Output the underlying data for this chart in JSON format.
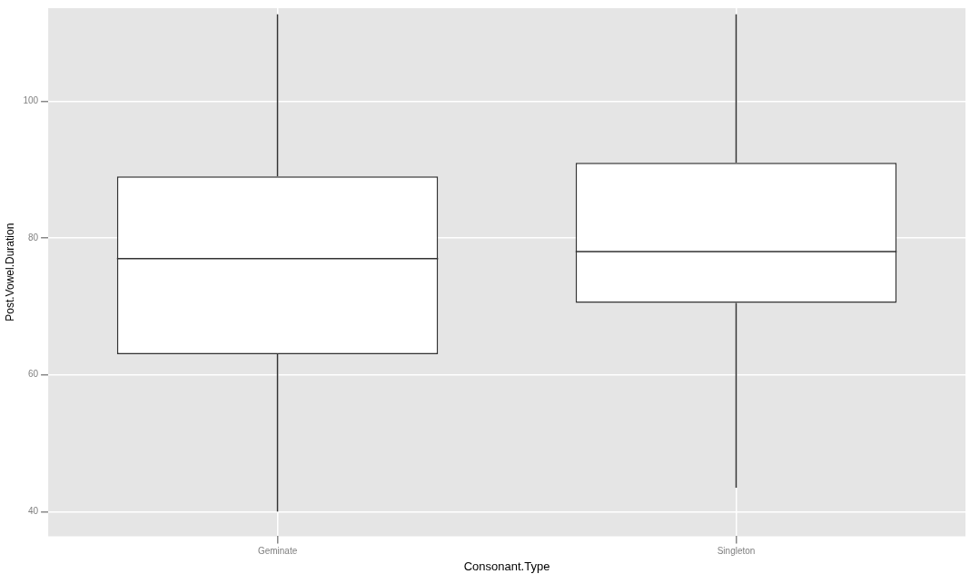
{
  "chart_data": {
    "type": "box",
    "xlabel": "Consonant.Type",
    "ylabel": "Post.Vowel.Duration",
    "categories": [
      "Geminate",
      "Singleton"
    ],
    "boxes": [
      {
        "low": 40,
        "q1": 63,
        "median": 77,
        "q3": 89,
        "high": 112.7
      },
      {
        "low": 43.5,
        "q1": 70.5,
        "median": 78,
        "q3": 91,
        "high": 112.7
      }
    ],
    "ylim": [
      36.4,
      113.6
    ],
    "yticks": [
      40,
      60,
      80,
      100
    ],
    "grid": true,
    "legend": false
  }
}
